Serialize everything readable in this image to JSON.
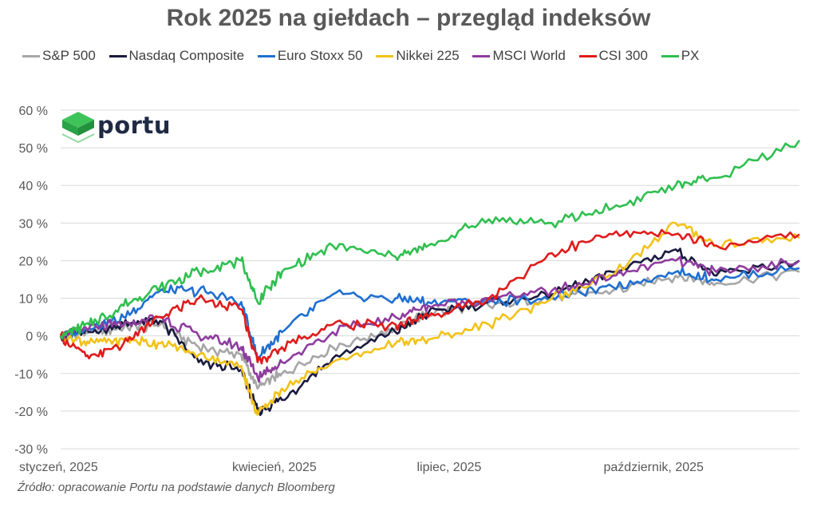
{
  "title": "Rok 2025 na giełdach – przegląd indeksów",
  "source": "Źródło: opracowanie Portu  na podstawie danych Bloomberg",
  "logo": {
    "text": "portu",
    "icon": "green-cube-logo-icon"
  },
  "chart_data": {
    "type": "line",
    "title": "Rok 2025 na giełdach – przegląd indeksów",
    "xlabel": "",
    "ylabel": "",
    "x_ticks": [
      "styczeń, 2025",
      "kwiecień, 2025",
      "lipiec, 2025",
      "październik, 2025"
    ],
    "x_tick_dates": [
      "2025-01-01",
      "2025-04-01",
      "2025-07-01",
      "2025-10-01"
    ],
    "xlim": [
      "2025-01-01",
      "2025-12-31"
    ],
    "y_ticks": [
      -30,
      -20,
      -10,
      0,
      10,
      20,
      30,
      40,
      50,
      60
    ],
    "y_tick_labels": [
      "-30 %",
      "-20 %",
      "-10 %",
      "0 %",
      "10 %",
      "20 %",
      "30 %",
      "40 %",
      "50 %",
      "60 %"
    ],
    "ylim": [
      -30,
      60
    ],
    "grid": "horizontal",
    "legend": "top",
    "series": [
      {
        "name": "S&P 500",
        "color": "#a6a6a6",
        "dates": [
          "2025-01-01",
          "2025-01-15",
          "2025-02-01",
          "2025-02-19",
          "2025-03-10",
          "2025-03-31",
          "2025-04-08",
          "2025-04-20",
          "2025-05-15",
          "2025-06-15",
          "2025-07-01",
          "2025-07-31",
          "2025-08-31",
          "2025-09-30",
          "2025-10-31",
          "2025-11-20",
          "2025-12-31"
        ],
        "values": [
          0,
          1,
          2,
          3,
          -3,
          -5,
          -14,
          -10,
          -3,
          2,
          6,
          8,
          10,
          12,
          16,
          14,
          17
        ]
      },
      {
        "name": "Nasdaq Composite",
        "color": "#1a1a40",
        "dates": [
          "2025-01-01",
          "2025-01-15",
          "2025-02-01",
          "2025-02-19",
          "2025-03-10",
          "2025-03-31",
          "2025-04-08",
          "2025-04-20",
          "2025-05-15",
          "2025-06-15",
          "2025-07-01",
          "2025-07-31",
          "2025-08-31",
          "2025-09-30",
          "2025-10-31",
          "2025-11-20",
          "2025-12-31"
        ],
        "values": [
          0,
          1,
          3,
          4,
          -7,
          -9,
          -20,
          -17,
          -6,
          1,
          6,
          9,
          11,
          17,
          23,
          16,
          20
        ]
      },
      {
        "name": "Euro Stoxx 50",
        "color": "#1f6fd1",
        "dates": [
          "2025-01-01",
          "2025-01-15",
          "2025-02-01",
          "2025-02-19",
          "2025-03-10",
          "2025-03-31",
          "2025-04-08",
          "2025-04-20",
          "2025-05-15",
          "2025-06-15",
          "2025-07-01",
          "2025-07-31",
          "2025-08-31",
          "2025-09-30",
          "2025-10-31",
          "2025-11-20",
          "2025-12-31"
        ],
        "values": [
          0,
          2,
          5,
          12,
          12,
          9,
          -6,
          1,
          11,
          10,
          9,
          9,
          10,
          13,
          17,
          15,
          18
        ]
      },
      {
        "name": "Nikkei 225",
        "color": "#f2c21a",
        "dates": [
          "2025-01-01",
          "2025-01-15",
          "2025-02-01",
          "2025-02-19",
          "2025-03-10",
          "2025-03-31",
          "2025-04-08",
          "2025-04-20",
          "2025-05-15",
          "2025-06-15",
          "2025-07-01",
          "2025-07-31",
          "2025-08-31",
          "2025-09-30",
          "2025-10-31",
          "2025-11-20",
          "2025-12-31"
        ],
        "values": [
          0,
          -2,
          -1,
          -2,
          -5,
          -8,
          -21,
          -14,
          -7,
          -2,
          -1,
          3,
          10,
          16,
          30,
          24,
          26
        ]
      },
      {
        "name": "MSCI World",
        "color": "#8e3c9e",
        "dates": [
          "2025-01-01",
          "2025-01-15",
          "2025-02-01",
          "2025-02-19",
          "2025-03-10",
          "2025-03-31",
          "2025-04-08",
          "2025-04-20",
          "2025-05-15",
          "2025-06-15",
          "2025-07-01",
          "2025-07-31",
          "2025-08-31",
          "2025-09-30",
          "2025-10-31",
          "2025-11-20",
          "2025-12-31"
        ],
        "values": [
          0,
          2,
          3,
          5,
          0,
          -3,
          -11,
          -7,
          1,
          5,
          8,
          10,
          12,
          16,
          20,
          17,
          20
        ]
      },
      {
        "name": "CSI 300",
        "color": "#e01b1b",
        "dates": [
          "2025-01-01",
          "2025-01-15",
          "2025-02-01",
          "2025-02-19",
          "2025-03-10",
          "2025-03-31",
          "2025-04-08",
          "2025-04-20",
          "2025-05-15",
          "2025-06-15",
          "2025-07-01",
          "2025-07-31",
          "2025-08-31",
          "2025-09-30",
          "2025-10-31",
          "2025-11-20",
          "2025-12-31"
        ],
        "values": [
          0,
          -6,
          -2,
          5,
          10,
          7,
          -7,
          -3,
          3,
          3,
          5,
          10,
          22,
          27,
          27,
          24,
          27
        ]
      },
      {
        "name": "PX",
        "color": "#2fbf4f",
        "dates": [
          "2025-01-01",
          "2025-01-15",
          "2025-02-01",
          "2025-02-19",
          "2025-03-10",
          "2025-03-31",
          "2025-04-08",
          "2025-04-20",
          "2025-05-15",
          "2025-06-15",
          "2025-07-01",
          "2025-07-31",
          "2025-08-31",
          "2025-09-30",
          "2025-10-31",
          "2025-11-20",
          "2025-12-31"
        ],
        "values": [
          0,
          3,
          8,
          13,
          17,
          20,
          9,
          17,
          24,
          21,
          24,
          31,
          30,
          34,
          40,
          42,
          52
        ]
      }
    ]
  }
}
